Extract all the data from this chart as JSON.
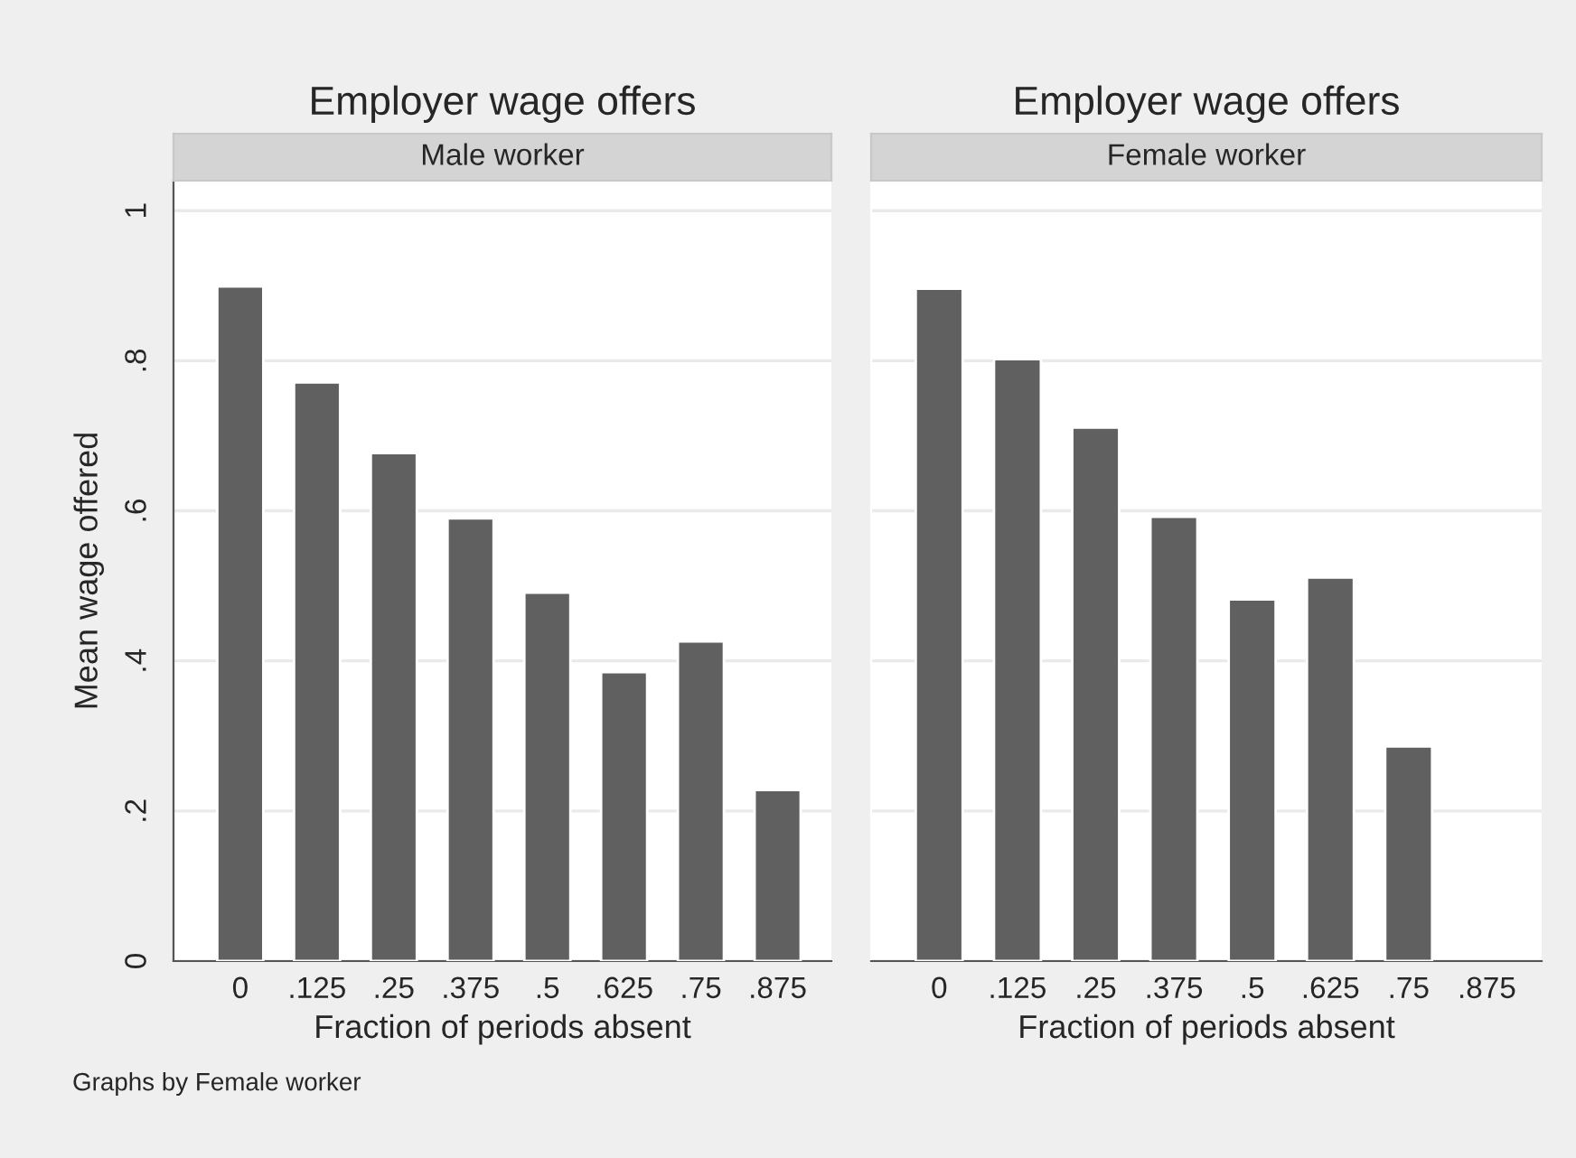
{
  "chart_data": [
    {
      "type": "bar",
      "title": "Employer wage offers",
      "subtitle": "Male worker",
      "xlabel": "Fraction of periods absent",
      "ylabel": "Mean wage offered",
      "categories": [
        "0",
        ".125",
        ".25",
        ".375",
        ".5",
        ".625",
        ".75",
        ".875"
      ],
      "values": [
        0.899,
        0.771,
        0.677,
        0.59,
        0.491,
        0.385,
        0.426,
        0.228
      ],
      "color": "#606060",
      "ylim": [
        0,
        1.04
      ],
      "yticks": [
        0,
        {
          "value": 0.2,
          "label": ".2"
        },
        {
          "value": 0.4,
          "label": ".4"
        },
        {
          "value": 0.6,
          "label": ".6"
        },
        {
          "value": 0.8,
          "label": ".8"
        },
        1
      ],
      "grid": "y",
      "annotations": [
        "Graphs by Female worker"
      ]
    },
    {
      "type": "bar",
      "title": "Employer wage offers",
      "subtitle": "Female worker",
      "xlabel": "Fraction of periods absent",
      "categories": [
        "0",
        ".125",
        ".25",
        ".375",
        ".5",
        ".625",
        ".75",
        ".875"
      ],
      "values": [
        0.896,
        0.802,
        0.711,
        0.592,
        0.482,
        0.511,
        0.286,
        null
      ],
      "color": "#606060",
      "ylim": [
        0,
        1.04
      ],
      "yticks": [
        0,
        0.2,
        0.4,
        0.6,
        0.8,
        1
      ],
      "grid": "y",
      "tick_labels": "x"
    }
  ]
}
